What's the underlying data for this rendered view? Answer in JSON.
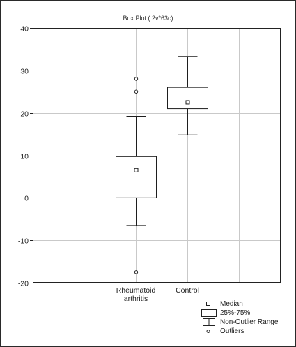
{
  "chart_data": {
    "type": "box",
    "title": "Box Plot ( 2v*63c)",
    "xlabel": "",
    "ylabel": "",
    "ylim": [
      -20,
      40
    ],
    "yticks": [
      -20,
      -10,
      0,
      10,
      20,
      30,
      40
    ],
    "grid": true,
    "legend_position": "bottom-right",
    "categories": [
      "Rheumatoid arthritis",
      "Control"
    ],
    "category_labels": [
      [
        "Rheumatoid",
        "arthritis"
      ],
      [
        "Control"
      ]
    ],
    "boxes": [
      {
        "category": "Rheumatoid arthritis",
        "median": 6.5,
        "q1": 0,
        "q3": 9.7,
        "whisker_low": -6.5,
        "whisker_high": 19.2,
        "outliers": [
          28,
          25,
          -17.5
        ]
      },
      {
        "category": "Control",
        "median": 22.5,
        "q1": 21,
        "q3": 26,
        "whisker_low": 14.8,
        "whisker_high": 33.3,
        "outliers": []
      }
    ],
    "legend": [
      "Median",
      "25%-75%",
      "Non-Outlier Range",
      "Outliers"
    ]
  },
  "colors": {
    "axis": "#222222",
    "grid": "#c9c9c9",
    "box": "#1e1e1e",
    "background": "#ffffff"
  }
}
